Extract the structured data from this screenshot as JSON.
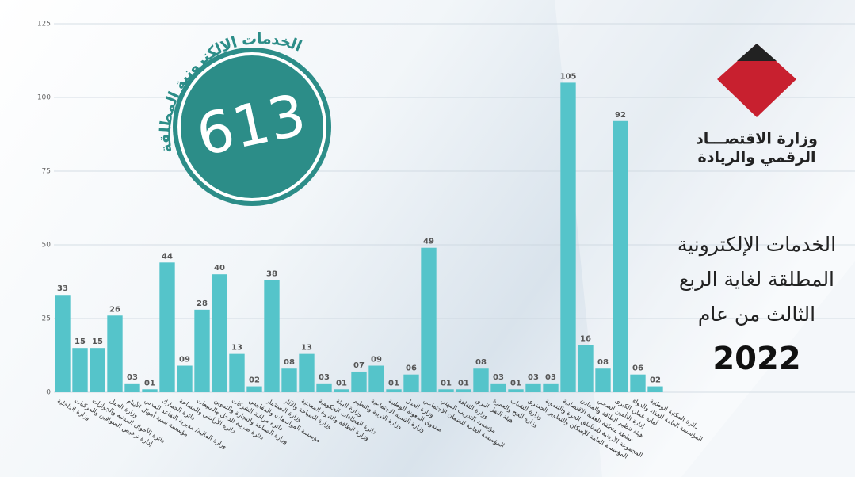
{
  "chart_data": {
    "type": "bar",
    "categories": [
      "وزارة الداخلية",
      "إدارة ترخيص السواقين والمركبات",
      "دائرة الأحوال المدنية والجوازات",
      "وزارة العمل",
      "مؤسسة تنمية أموال الأيتام",
      "وزارة المالية/ مديرية التقاعد المدني",
      "دائرة الجمارك",
      "دائرة الأراضي والمساحة",
      "دائرة ضريبة الدخل والمبيعات",
      "وزارة الصناعة والتجارة والتموين",
      "دائرة مراقبة الشركات",
      "مؤسسة المواصفات والمقاييس",
      "وزارة الاستثمار",
      "وزارة السياحة والآثار",
      "وزارة الطاقة والثروة المعدنية",
      "دائرة العطاءات الحكومية",
      "وزارة البيئة",
      "وزارة التربية والتعليم",
      "وزارة التنمية الاجتماعية",
      "صندوق المعونة الوطنية",
      "وزارة العدل",
      "المؤسسة العامة للضمان الاجتماعي",
      "مؤسسة التدريب المهني",
      "وزارة الثقافة",
      "هيئة النقل البري",
      "وزارة الحج والعمرة",
      "وزارة الشباب",
      "المؤسسة العامة للإسكان والتطوير الحضري",
      "المجموعة الأردنية للمناطق الحرة والتنموية",
      "سلطة منطقة العقبة الاقتصادية",
      "هيئة تنظيم الطاقة والمعادن",
      "إدارة التأمين الصحي",
      "أمانة عمان الكبرى",
      "المؤسسة العامة للغذاء والدواء",
      "دائرة المكتبة الوطنية"
    ],
    "values": [
      33,
      15,
      15,
      26,
      3,
      1,
      44,
      9,
      28,
      40,
      13,
      2,
      38,
      8,
      13,
      3,
      1,
      7,
      9,
      1,
      6,
      49,
      1,
      1,
      8,
      3,
      1,
      3,
      3,
      105,
      16,
      8,
      92,
      6,
      2
    ],
    "value_labels": [
      "33",
      "15",
      "15",
      "26",
      "03",
      "01",
      "44",
      "09",
      "28",
      "40",
      "13",
      "02",
      "38",
      "08",
      "13",
      "03",
      "01",
      "07",
      "09",
      "01",
      "06",
      "49",
      "01",
      "01",
      "08",
      "03",
      "01",
      "03",
      "03",
      "105",
      "16",
      "08",
      "92",
      "06",
      "02"
    ],
    "color": "#55c4ca",
    "ylim": [
      0,
      125
    ],
    "yticks": [
      0,
      25,
      50,
      75,
      100,
      125
    ],
    "grid": true
  },
  "badge": {
    "caption": "الخدمات الإلكترونية المطلقة",
    "total": "613"
  },
  "logo": {
    "line1": "وزارة الاقتصـــاد",
    "line2": "الرقمي والريادة"
  },
  "headline": {
    "lines": [
      "الخدمات الإلكترونية",
      "المطلقة لغاية الربع",
      "الثالث من عام"
    ],
    "year": "2022"
  }
}
